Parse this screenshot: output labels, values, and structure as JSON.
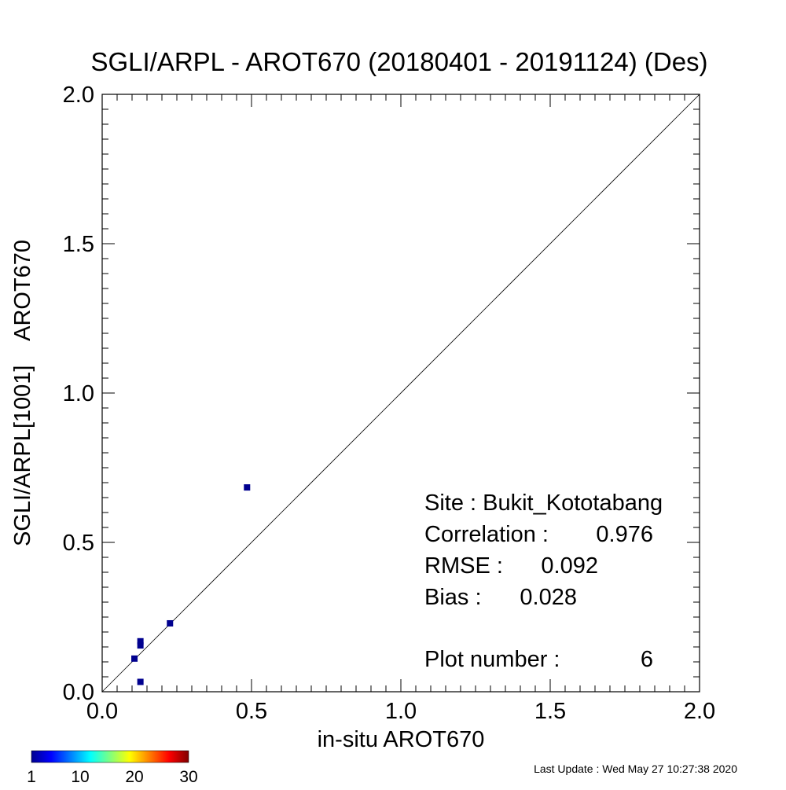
{
  "chart_data": {
    "type": "scatter",
    "title": "SGLI/ARPL - AROT670 (20180401 - 20191124) (Des)",
    "xlabel": "in-situ AROT670",
    "ylabel": "SGLI/ARPL[1001]    AROT670",
    "xlim": [
      0.0,
      2.0
    ],
    "ylim": [
      0.0,
      2.0
    ],
    "x_ticks": [
      "0.0",
      "0.5",
      "1.0",
      "1.5",
      "2.0"
    ],
    "y_ticks": [
      "0.0",
      "0.5",
      "1.0",
      "1.5",
      "2.0"
    ],
    "x_tick_values": [
      0.0,
      0.5,
      1.0,
      1.5,
      2.0
    ],
    "y_tick_values": [
      0.0,
      0.5,
      1.0,
      1.5,
      2.0
    ],
    "minor_tick_step": 0.05,
    "reference_line": "1:1",
    "grid": false,
    "points": [
      {
        "x": 0.485,
        "y": 0.684,
        "count": 1
      },
      {
        "x": 0.227,
        "y": 0.229,
        "count": 1
      },
      {
        "x": 0.128,
        "y": 0.169,
        "count": 1
      },
      {
        "x": 0.128,
        "y": 0.155,
        "count": 1
      },
      {
        "x": 0.108,
        "y": 0.111,
        "count": 1
      },
      {
        "x": 0.128,
        "y": 0.033,
        "count": 1
      }
    ],
    "point_color": "#00008f",
    "stats": {
      "site_label": "Site : Bukit_Kototabang",
      "correlation_label": "Correlation :",
      "correlation_value": "0.976",
      "rmse_label": "RMSE :",
      "rmse_value": "0.092",
      "bias_label": "Bias :",
      "bias_value": "0.028",
      "plot_number_label": "Plot number :",
      "plot_number_value": "6"
    },
    "colorbar": {
      "min": 1,
      "max": 30,
      "tick_labels": [
        "1",
        "10",
        "20",
        "30"
      ],
      "tick_values": [
        1,
        10,
        20,
        30
      ],
      "colormap": "jet"
    }
  },
  "footer": {
    "last_update": "Last Update : Wed May 27 10:27:38 2020"
  }
}
